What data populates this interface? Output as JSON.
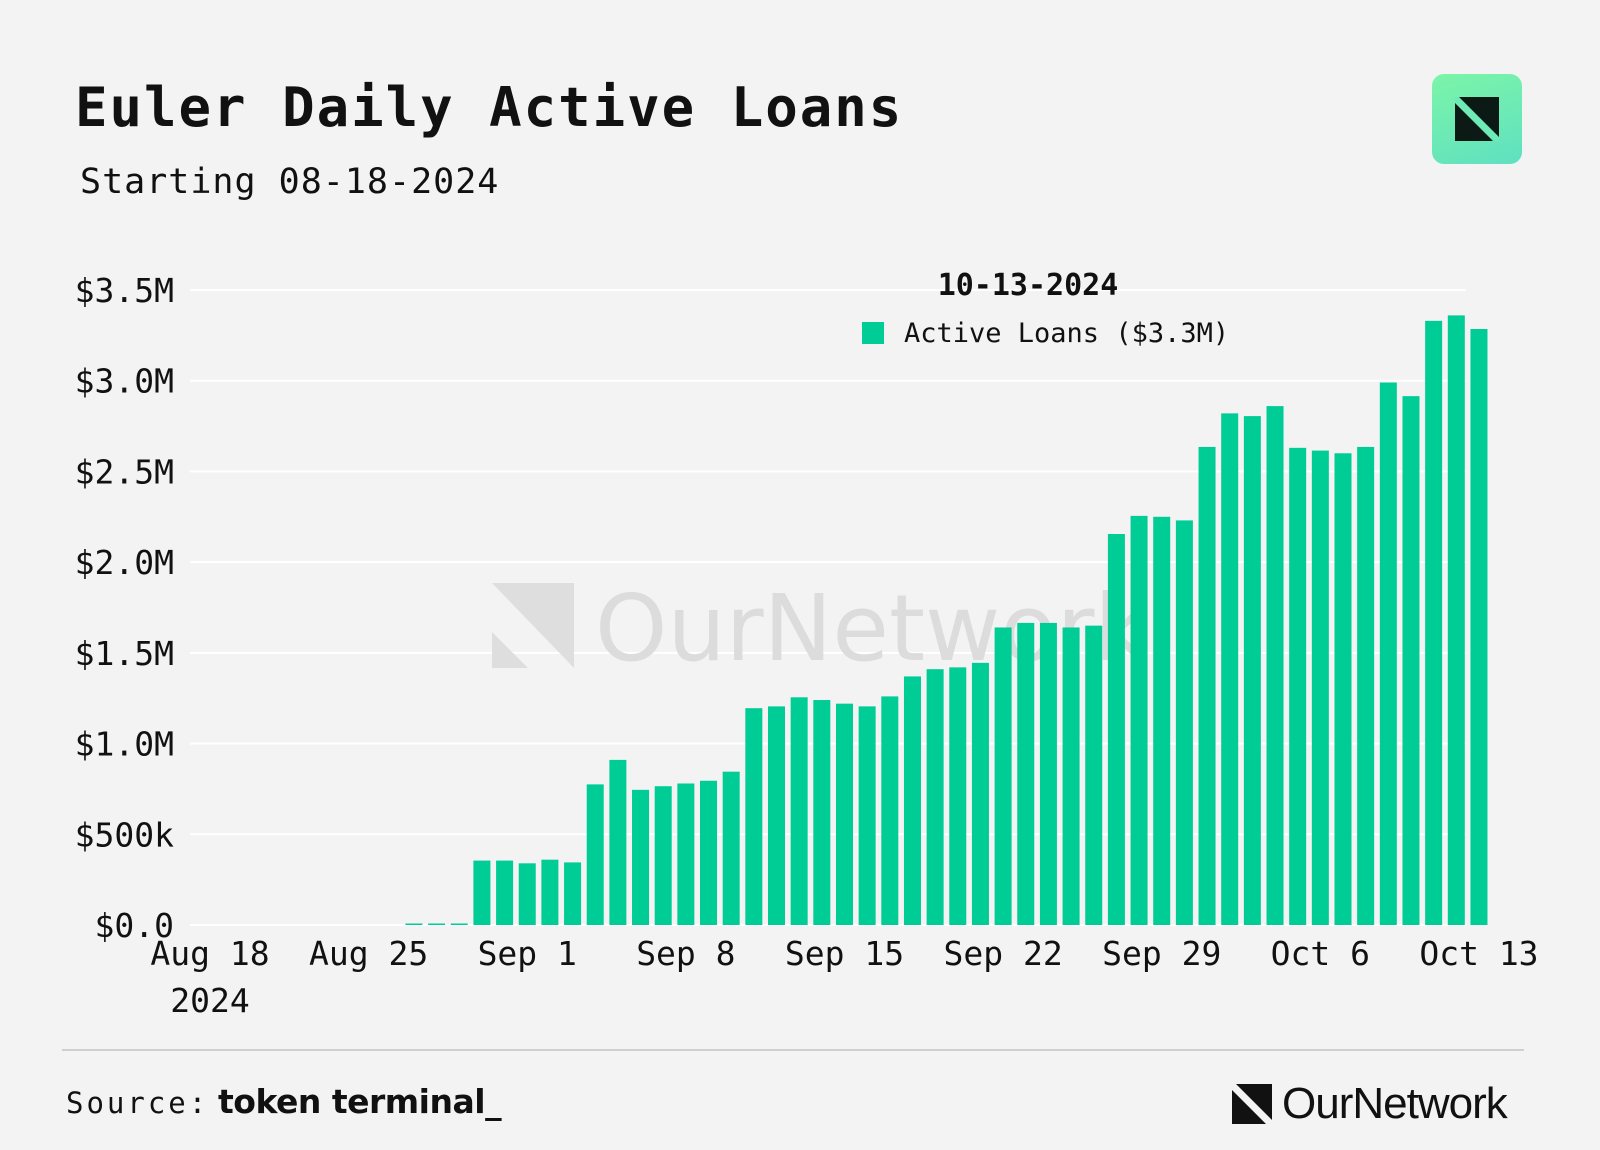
{
  "header": {
    "title": "Euler Daily Active Loans",
    "subtitle": "Starting 08-18-2024"
  },
  "footer": {
    "source_label": "Source:",
    "source_name": "token terminal_",
    "brand": "OurNetwork"
  },
  "watermark": {
    "text": "OurNetwork"
  },
  "colors": {
    "bar": "#00cc95",
    "grid": "#ffffff",
    "background": "#f3f3f3"
  },
  "chart_data": {
    "type": "bar",
    "title": "Euler Daily Active Loans",
    "subtitle": "Starting 08-18-2024",
    "ylim": [
      0,
      3500000
    ],
    "y_ticks": [
      {
        "value": 0,
        "label": "$0.0"
      },
      {
        "value": 500000,
        "label": "$500k"
      },
      {
        "value": 1000000,
        "label": "$1.0M"
      },
      {
        "value": 1500000,
        "label": "$1.5M"
      },
      {
        "value": 2000000,
        "label": "$2.0M"
      },
      {
        "value": 2500000,
        "label": "$2.5M"
      },
      {
        "value": 3000000,
        "label": "$3.0M"
      },
      {
        "value": 3500000,
        "label": "$3.5M"
      }
    ],
    "x_ticks": [
      {
        "date": "2024-08-18",
        "label": "Aug 18",
        "sublabel": "2024"
      },
      {
        "date": "2024-08-25",
        "label": "Aug 25"
      },
      {
        "date": "2024-09-01",
        "label": "Sep 1"
      },
      {
        "date": "2024-09-08",
        "label": "Sep 8"
      },
      {
        "date": "2024-09-15",
        "label": "Sep 15"
      },
      {
        "date": "2024-09-22",
        "label": "Sep 22"
      },
      {
        "date": "2024-09-29",
        "label": "Sep 29"
      },
      {
        "date": "2024-10-06",
        "label": "Oct 6"
      },
      {
        "date": "2024-10-13",
        "label": "Oct 13"
      }
    ],
    "legend": {
      "date": "10-13-2024",
      "label": "Active Loans ($3.3M)"
    },
    "grid": true,
    "series": [
      {
        "name": "Active Loans",
        "data": [
          [
            "2024-08-18",
            0
          ],
          [
            "2024-08-19",
            0
          ],
          [
            "2024-08-20",
            0
          ],
          [
            "2024-08-21",
            0
          ],
          [
            "2024-08-22",
            0
          ],
          [
            "2024-08-23",
            0
          ],
          [
            "2024-08-24",
            0
          ],
          [
            "2024-08-25",
            0
          ],
          [
            "2024-08-26",
            0
          ],
          [
            "2024-08-27",
            5000
          ],
          [
            "2024-08-28",
            5000
          ],
          [
            "2024-08-29",
            8000
          ],
          [
            "2024-08-30",
            355000
          ],
          [
            "2024-08-31",
            355000
          ],
          [
            "2024-09-01",
            340000
          ],
          [
            "2024-09-02",
            360000
          ],
          [
            "2024-09-03",
            345000
          ],
          [
            "2024-09-04",
            775000
          ],
          [
            "2024-09-05",
            910000
          ],
          [
            "2024-09-06",
            745000
          ],
          [
            "2024-09-07",
            765000
          ],
          [
            "2024-09-08",
            780000
          ],
          [
            "2024-09-09",
            795000
          ],
          [
            "2024-09-10",
            845000
          ],
          [
            "2024-09-11",
            1195000
          ],
          [
            "2024-09-12",
            1205000
          ],
          [
            "2024-09-13",
            1255000
          ],
          [
            "2024-09-14",
            1240000
          ],
          [
            "2024-09-15",
            1220000
          ],
          [
            "2024-09-16",
            1205000
          ],
          [
            "2024-09-17",
            1260000
          ],
          [
            "2024-09-18",
            1370000
          ],
          [
            "2024-09-19",
            1410000
          ],
          [
            "2024-09-20",
            1420000
          ],
          [
            "2024-09-21",
            1445000
          ],
          [
            "2024-09-22",
            1640000
          ],
          [
            "2024-09-23",
            1665000
          ],
          [
            "2024-09-24",
            1665000
          ],
          [
            "2024-09-25",
            1640000
          ],
          [
            "2024-09-26",
            1650000
          ],
          [
            "2024-09-27",
            2155000
          ],
          [
            "2024-09-28",
            2255000
          ],
          [
            "2024-09-29",
            2250000
          ],
          [
            "2024-09-30",
            2230000
          ],
          [
            "2024-10-01",
            2635000
          ],
          [
            "2024-10-02",
            2820000
          ],
          [
            "2024-10-03",
            2805000
          ],
          [
            "2024-10-04",
            2860000
          ],
          [
            "2024-10-05",
            2630000
          ],
          [
            "2024-10-06",
            2615000
          ],
          [
            "2024-10-07",
            2600000
          ],
          [
            "2024-10-08",
            2635000
          ],
          [
            "2024-10-09",
            2990000
          ],
          [
            "2024-10-10",
            2915000
          ],
          [
            "2024-10-11",
            3330000
          ],
          [
            "2024-10-12",
            3360000
          ],
          [
            "2024-10-13",
            3285000
          ]
        ]
      }
    ]
  }
}
